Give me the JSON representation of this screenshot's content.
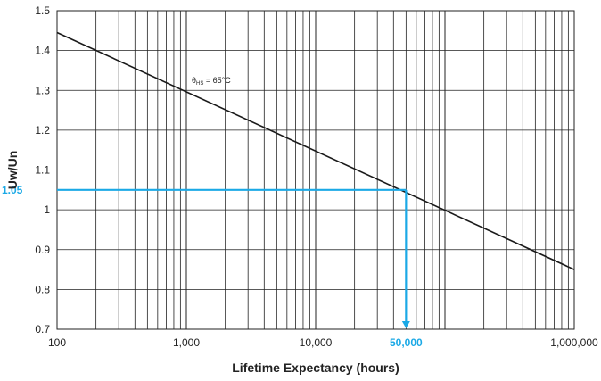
{
  "chart_data": {
    "type": "line",
    "xlabel": "Lifetime Expectancy (hours)",
    "ylabel": "Uw/Un",
    "x_scale": "log",
    "xlim": [
      100,
      1000000
    ],
    "ylim": [
      0.7,
      1.5
    ],
    "grid": true,
    "x_ticks": [
      {
        "value": 100,
        "label": "100"
      },
      {
        "value": 1000,
        "label": "1,000"
      },
      {
        "value": 10000,
        "label": "10,000"
      },
      {
        "value": 1000000,
        "label": "1,000,000"
      }
    ],
    "y_ticks": [
      {
        "value": 0.7,
        "label": "0.7"
      },
      {
        "value": 0.8,
        "label": "0.8"
      },
      {
        "value": 0.9,
        "label": "0.9"
      },
      {
        "value": 1.0,
        "label": "1"
      },
      {
        "value": 1.1,
        "label": "1.1"
      },
      {
        "value": 1.2,
        "label": "1.2"
      },
      {
        "value": 1.3,
        "label": "1.3"
      },
      {
        "value": 1.4,
        "label": "1.4"
      },
      {
        "value": 1.5,
        "label": "1.5"
      }
    ],
    "series": [
      {
        "x": [
          100,
          1000000
        ],
        "y": [
          1.445,
          0.85
        ],
        "color": "#1a1a1a"
      }
    ],
    "annotations": {
      "curve_label": {
        "main": "θ",
        "sub": "HS",
        "rest": " = 65°C",
        "x": 1000,
        "y": 1.305
      },
      "highlight": {
        "x": 50000,
        "y": 1.05,
        "x_label": "50,000",
        "y_label": "1.05",
        "color": "#1ba9e6"
      }
    }
  }
}
